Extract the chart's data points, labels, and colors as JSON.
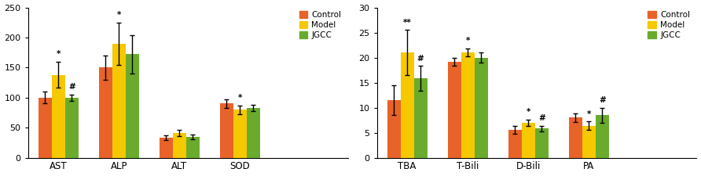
{
  "chart1": {
    "categories": [
      "AST",
      "ALP",
      "ALT",
      "SOD"
    ],
    "control": [
      100,
      150,
      33,
      90
    ],
    "model": [
      138,
      190,
      41,
      80
    ],
    "jgcc": [
      100,
      172,
      35,
      83
    ],
    "control_err": [
      10,
      20,
      4,
      7
    ],
    "model_err": [
      22,
      35,
      5,
      7
    ],
    "jgcc_err": [
      5,
      32,
      4,
      5
    ],
    "ylim": [
      0,
      250
    ],
    "yticks": [
      0,
      50,
      100,
      150,
      200,
      250
    ],
    "annotations": {
      "AST": {
        "model": "*",
        "jgcc": "#"
      },
      "ALP": {
        "model": "*"
      },
      "ALT": {},
      "SOD": {
        "model": "*"
      }
    }
  },
  "chart2": {
    "categories": [
      "TBA",
      "T-Bili",
      "D-Bili",
      "PA"
    ],
    "control": [
      11.5,
      19.2,
      5.6,
      8.0
    ],
    "model": [
      21.0,
      21.0,
      7.0,
      6.4
    ],
    "jgcc": [
      15.8,
      20.0,
      5.8,
      8.5
    ],
    "control_err": [
      3.0,
      0.8,
      0.8,
      0.9
    ],
    "model_err": [
      4.5,
      0.8,
      0.6,
      0.8
    ],
    "jgcc_err": [
      2.5,
      1.0,
      0.5,
      1.5
    ],
    "ylim": [
      0,
      30
    ],
    "yticks": [
      0,
      5,
      10,
      15,
      20,
      25,
      30
    ],
    "annotations": {
      "TBA": {
        "model": "**",
        "jgcc": "#"
      },
      "T-Bili": {
        "model": "*"
      },
      "D-Bili": {
        "model": "*",
        "jgcc": "#"
      },
      "PA": {
        "model": "*",
        "jgcc": "#"
      }
    }
  },
  "colors": {
    "control": "#E8632A",
    "model": "#F5C800",
    "jgcc": "#6AAB2E"
  },
  "legend_labels": [
    "Control",
    "Model",
    "JGCC"
  ],
  "bar_width": 0.22,
  "figsize": [
    8.92,
    2.25
  ],
  "dpi": 100
}
